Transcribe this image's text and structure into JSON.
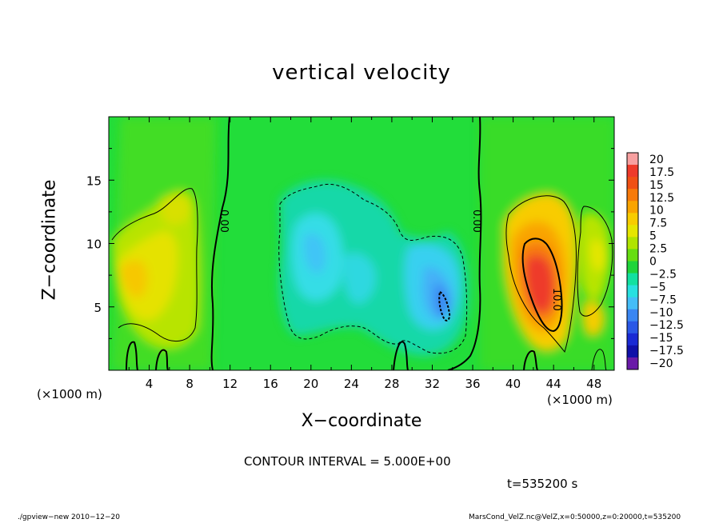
{
  "chart_data": {
    "type": "heatmap",
    "title": "vertical velocity",
    "xlabel": "X−coordinate",
    "ylabel": "Z−coordinate",
    "x_unit": "(×1000 m)",
    "xlim": [
      0,
      50
    ],
    "ylim": [
      0,
      20
    ],
    "x_ticks": [
      "4",
      "8",
      "12",
      "16",
      "20",
      "24",
      "28",
      "32",
      "36",
      "40",
      "44",
      "48"
    ],
    "y_ticks": [
      "5",
      "10",
      "15"
    ],
    "colorbar_ticks": [
      "20",
      "17.5",
      "15",
      "12.5",
      "10",
      "7.5",
      "5",
      "2.5",
      "0",
      "−2.5",
      "−5",
      "−7.5",
      "−10",
      "−12.5",
      "−15",
      "−17.5",
      "−20"
    ],
    "colorbar_colors": [
      "#f7a0a0",
      "#ee3a2a",
      "#f05014",
      "#f77a0a",
      "#f9a400",
      "#f8cc00",
      "#e6e600",
      "#b0e400",
      "#66dd11",
      "#1fd43a",
      "#12e0a0",
      "#28e0e0",
      "#44bdf8",
      "#3a86f2",
      "#2a58e6",
      "#1a2ad4",
      "#1010a8",
      "#6a1aa8"
    ],
    "contour_labels": [
      "0.00",
      "0.00",
      "10.0"
    ],
    "contour_interval": "CONTOUR INTERVAL = 5.000E+00",
    "time_label": "t=535200 s"
  },
  "footer": {
    "left": "./gpview−new  2010−12−20",
    "right": "MarsCond_VelZ.nc@VelZ,x=0:50000,z=0:20000,t=535200"
  }
}
